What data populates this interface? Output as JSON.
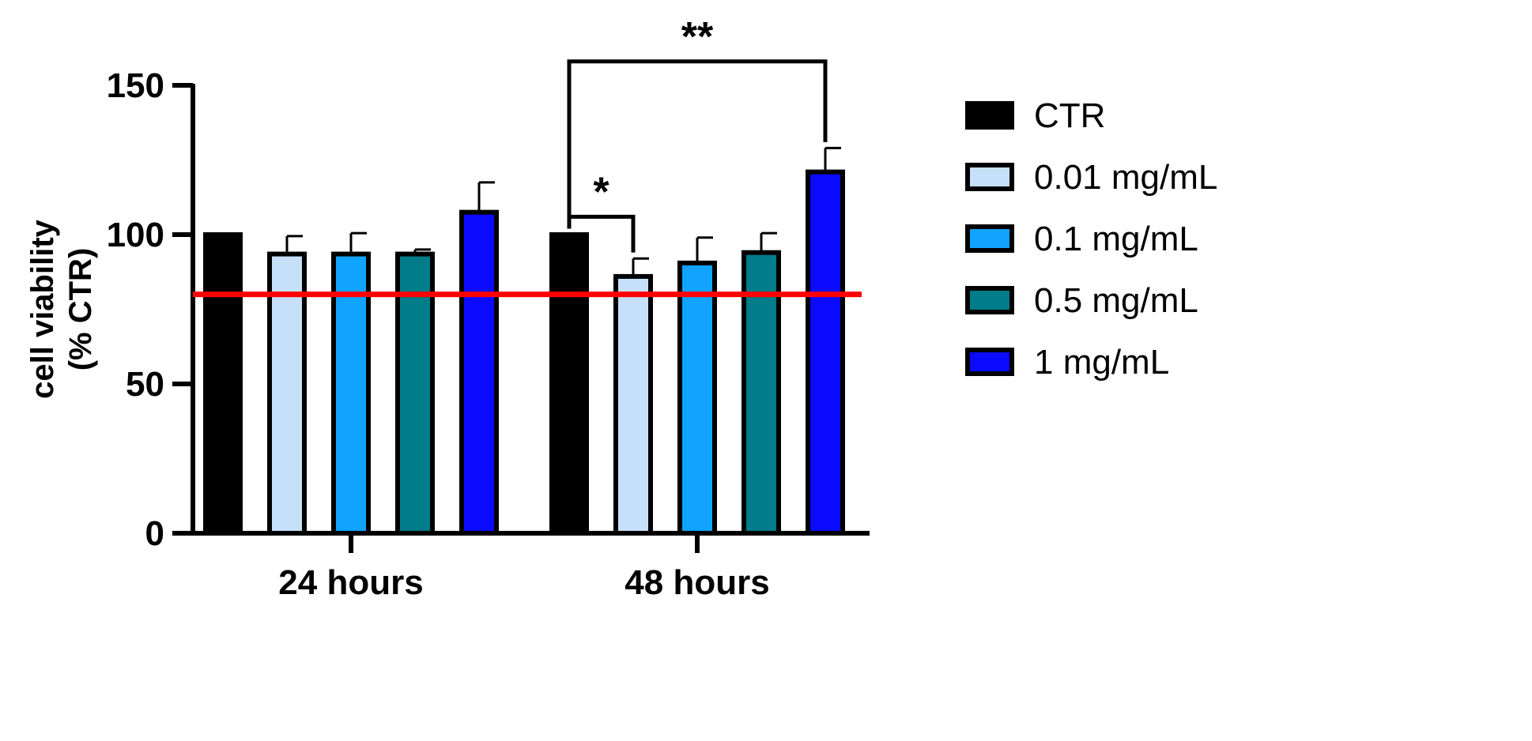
{
  "chart_data": {
    "type": "bar",
    "categories": [
      "24 hours",
      "48 hours"
    ],
    "ylabel_lines": [
      "cell viability",
      "(% CTR)"
    ],
    "ylim": [
      0,
      150
    ],
    "yticks": [
      0,
      50,
      100,
      150
    ],
    "reference_line": {
      "value": 80,
      "color": "#ff0000"
    },
    "legend_position": "right",
    "series": [
      {
        "name": "CTR",
        "color": "#000000",
        "values": [
          100,
          100
        ],
        "errors": [
          0,
          0
        ]
      },
      {
        "name": "0.01 mg/mL",
        "color": "#c6e0fa",
        "values": [
          93.5,
          86
        ],
        "errors": [
          6,
          6
        ]
      },
      {
        "name": "0.1 mg/mL",
        "color": "#10a4ff",
        "values": [
          93.5,
          90.5
        ],
        "errors": [
          7,
          8.5
        ]
      },
      {
        "name": "0.5 mg/mL",
        "color": "#007c8a",
        "values": [
          93.5,
          94
        ],
        "errors": [
          1.5,
          6.5
        ]
      },
      {
        "name": "1 mg/mL",
        "color": "#0a0aff",
        "values": [
          107.5,
          121
        ],
        "errors": [
          10,
          8
        ]
      }
    ],
    "significance": [
      {
        "label": "*",
        "category": 1,
        "from_series": 0,
        "to_series": 1
      },
      {
        "label": "**",
        "category": 1,
        "from_series": 0,
        "to_series": 4
      }
    ]
  }
}
